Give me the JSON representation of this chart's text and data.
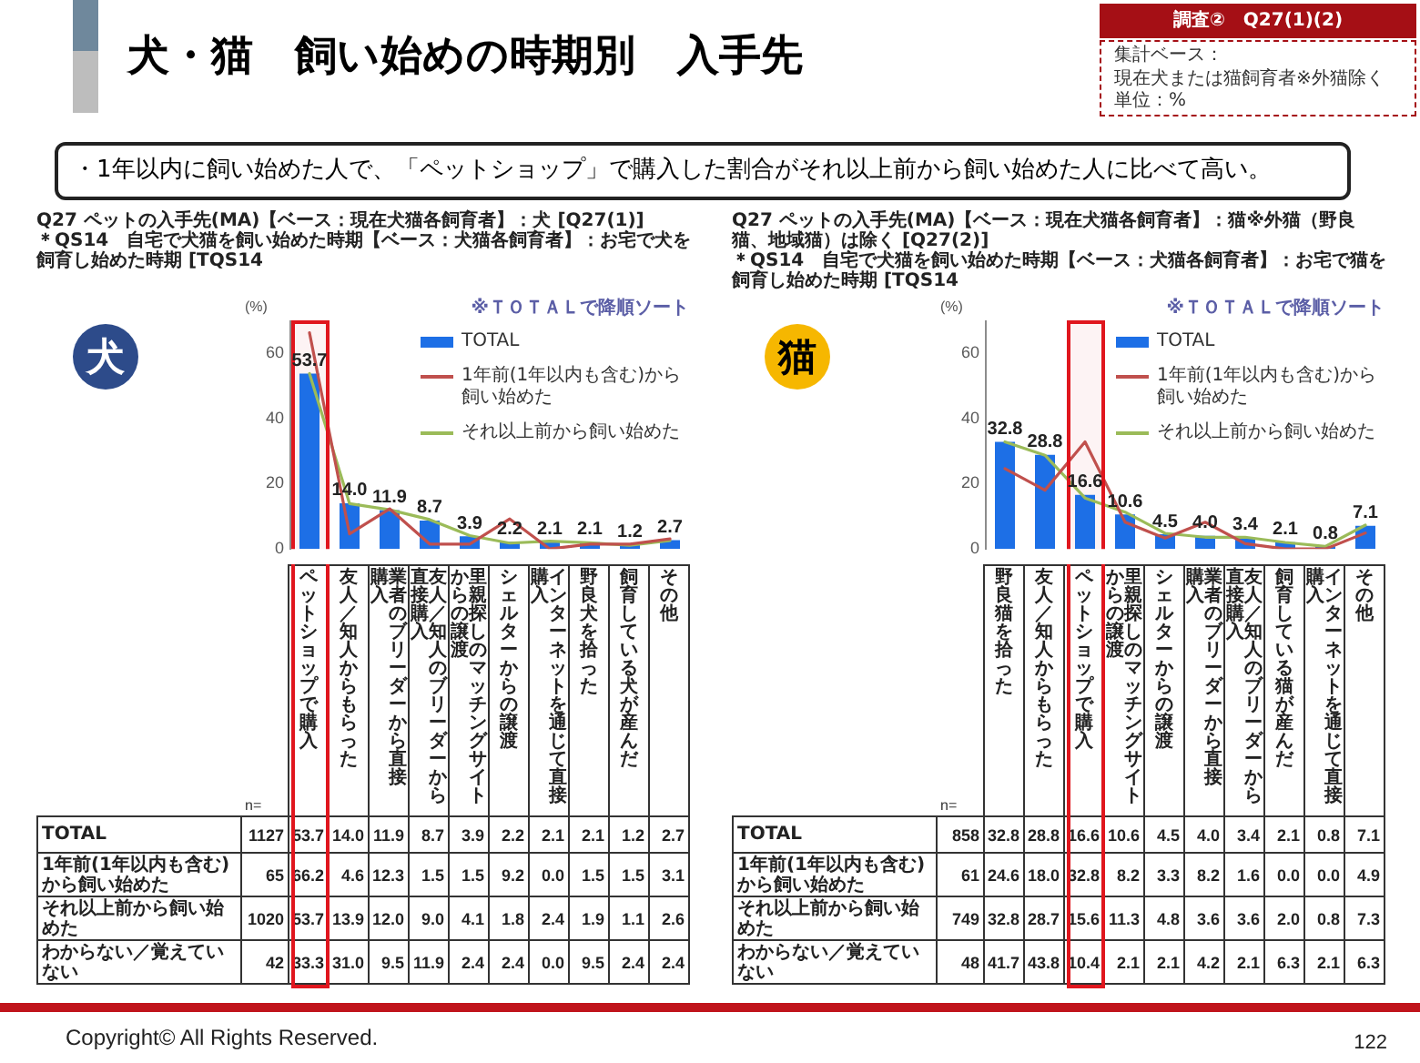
{
  "chart_data": [
    {
      "type": "other",
      "title": "犬・猫　飼い始めの時期別　入手先",
      "annotations": [
        "調査②　Q27(1)(2)",
        "集計ベース：",
        "現在犬または猫飼育者※外猫除く",
        "単位：%",
        "・1年以内に飼い始めた人で、「ペットショップ」で購入した割合がそれ以上前から飼い始めた人に比べて高い。",
        "Copyright© All Rights Reserved.",
        "122"
      ]
    },
    {
      "type": "bar",
      "title": "Q27 ペットの入手先(MA)【ベース：現在犬猫各飼育者】：犬 [Q27(1)]",
      "subtitle": "＊QS14　自宅で犬猫を飼い始めた時期【ベース：犬猫各飼育者】：お宅で犬を飼育し始めた時期 [TQS14",
      "ylabel": "(%)",
      "annotations": [
        "犬",
        "※ＴＯＴＡＬで降順ソート",
        "n=",
        "1127",
        "65",
        "1020"
      ],
      "categories": [
        "ペットショップで購入",
        "友人／知人からもらった",
        "業者のブリーダーから直接購入",
        "友人／知人のブリーダーから直接購入",
        "里親探しのマッチングサイトからの譲渡",
        "シェルターからの譲渡",
        "インターネットを通じて直接購入",
        "野良犬を拾った",
        "飼育している犬が産んだ",
        "その他"
      ],
      "series": [
        {
          "name": "TOTAL",
          "color": "#1d6fe6",
          "values": [
            53.7,
            14.0,
            11.9,
            8.7,
            3.9,
            2.2,
            2.1,
            2.1,
            1.2,
            2.7
          ],
          "value_labels": [
            "53.7",
            "14.0",
            "11.9",
            "8.7",
            "3.9",
            "2.2",
            "2.1",
            "2.1",
            "1.2",
            "2.7"
          ]
        },
        {
          "name": "1年前(1年以内も含む)から飼い始めた",
          "type": "line",
          "color": "#c0504d",
          "values": [
            66.2,
            4.6,
            12.3,
            1.5,
            1.5,
            9.2,
            0.0,
            1.5,
            1.5,
            3.1
          ],
          "value_labels": [
            "66.2",
            "4.6",
            "12.3",
            "1.5",
            "1.5",
            "9.2",
            "0.0",
            "1.5",
            "1.5",
            "3.1"
          ]
        },
        {
          "name": "それ以上前から飼い始めた",
          "type": "line",
          "color": "#9bbb59",
          "values": [
            53.7,
            13.9,
            12.0,
            9.0,
            4.1,
            1.8,
            2.4,
            1.9,
            1.1,
            2.6
          ],
          "value_labels": [
            "53.7",
            "13.9",
            "12.0",
            "9.0",
            "4.1",
            "1.8",
            "2.4",
            "1.9",
            "1.1",
            "2.6"
          ]
        }
      ],
      "ylim": [
        0,
        70
      ],
      "yticks": [
        0,
        20,
        40,
        60
      ],
      "legend": "top right",
      "marker": "none",
      "bands": [
        {
          "axis": "x",
          "from": "ペットショップで購入",
          "to": "ペットショップで購入",
          "color": "#e0161e"
        }
      ]
    },
    {
      "type": "other",
      "title": "わからない／覚えていない",
      "annotations": [
        "42"
      ],
      "values": [
        33.3,
        31.0,
        9.5,
        11.9,
        2.4,
        2.4,
        0.0,
        9.5,
        2.4,
        2.4
      ],
      "value_labels": [
        "33.3",
        "31.0",
        "9.5",
        "11.9",
        "2.4",
        "2.4",
        "0.0",
        "9.5",
        "2.4",
        "2.4"
      ]
    },
    {
      "type": "bar",
      "title": "Q27 ペットの入手先(MA)【ベース：現在犬猫各飼育者】：猫※外猫（野良猫、地域猫）は除く [Q27(2)]",
      "subtitle": "＊QS14　自宅で犬猫を飼い始めた時期【ベース：犬猫各飼育者】：お宅で猫を飼育し始めた時期 [TQS14",
      "ylabel": "(%)",
      "annotations": [
        "猫",
        "※ＴＯＴＡＬで降順ソート",
        "n=",
        "858",
        "61",
        "749"
      ],
      "categories": [
        "野良猫を拾った",
        "友人／知人からもらった",
        "ペットショップで購入",
        "里親探しのマッチングサイトからの譲渡",
        "シェルターからの譲渡",
        "業者のブリーダーから直接購入",
        "友人／知人のブリーダーから直接購入",
        "飼育している猫が産んだ",
        "インターネットを通じて直接購入",
        "その他"
      ],
      "series": [
        {
          "name": "TOTAL",
          "color": "#1d6fe6",
          "values": [
            32.8,
            28.8,
            16.6,
            10.6,
            4.5,
            4.0,
            3.4,
            2.1,
            0.8,
            7.1
          ],
          "value_labels": [
            "32.8",
            "28.8",
            "16.6",
            "10.6",
            "4.5",
            "4.0",
            "3.4",
            "2.1",
            "0.8",
            "7.1"
          ]
        },
        {
          "name": "1年前(1年以内も含む)から飼い始めた",
          "type": "line",
          "color": "#c0504d",
          "values": [
            24.6,
            18.0,
            32.8,
            8.2,
            3.3,
            8.2,
            1.6,
            0.0,
            0.0,
            4.9
          ],
          "value_labels": [
            "24.6",
            "18.0",
            "32.8",
            "8.2",
            "3.3",
            "8.2",
            "1.6",
            "0.0",
            "0.0",
            "4.9"
          ]
        },
        {
          "name": "それ以上前から飼い始めた",
          "type": "line",
          "color": "#9bbb59",
          "values": [
            32.8,
            28.7,
            15.6,
            11.3,
            4.8,
            3.6,
            3.6,
            2.0,
            0.8,
            7.3
          ],
          "value_labels": [
            "32.8",
            "28.7",
            "15.6",
            "11.3",
            "4.8",
            "3.6",
            "3.6",
            "2.0",
            "0.8",
            "7.3"
          ]
        }
      ],
      "ylim": [
        0,
        70
      ],
      "yticks": [
        0,
        20,
        40,
        60
      ],
      "legend": "top right",
      "marker": "none",
      "bands": [
        {
          "axis": "x",
          "from": "ペットショップで購入",
          "to": "ペットショップで購入",
          "color": "#e0161e"
        }
      ]
    },
    {
      "type": "other",
      "title": "わからない／覚えていない",
      "annotations": [
        "48"
      ],
      "values": [
        41.7,
        43.8,
        10.4,
        2.1,
        2.1,
        4.2,
        2.1,
        6.3,
        2.1,
        6.3
      ],
      "value_labels": [
        "41.7",
        "43.8",
        "10.4",
        "2.1",
        "2.1",
        "4.2",
        "2.1",
        "6.3",
        "2.1",
        "6.3"
      ]
    }
  ]
}
